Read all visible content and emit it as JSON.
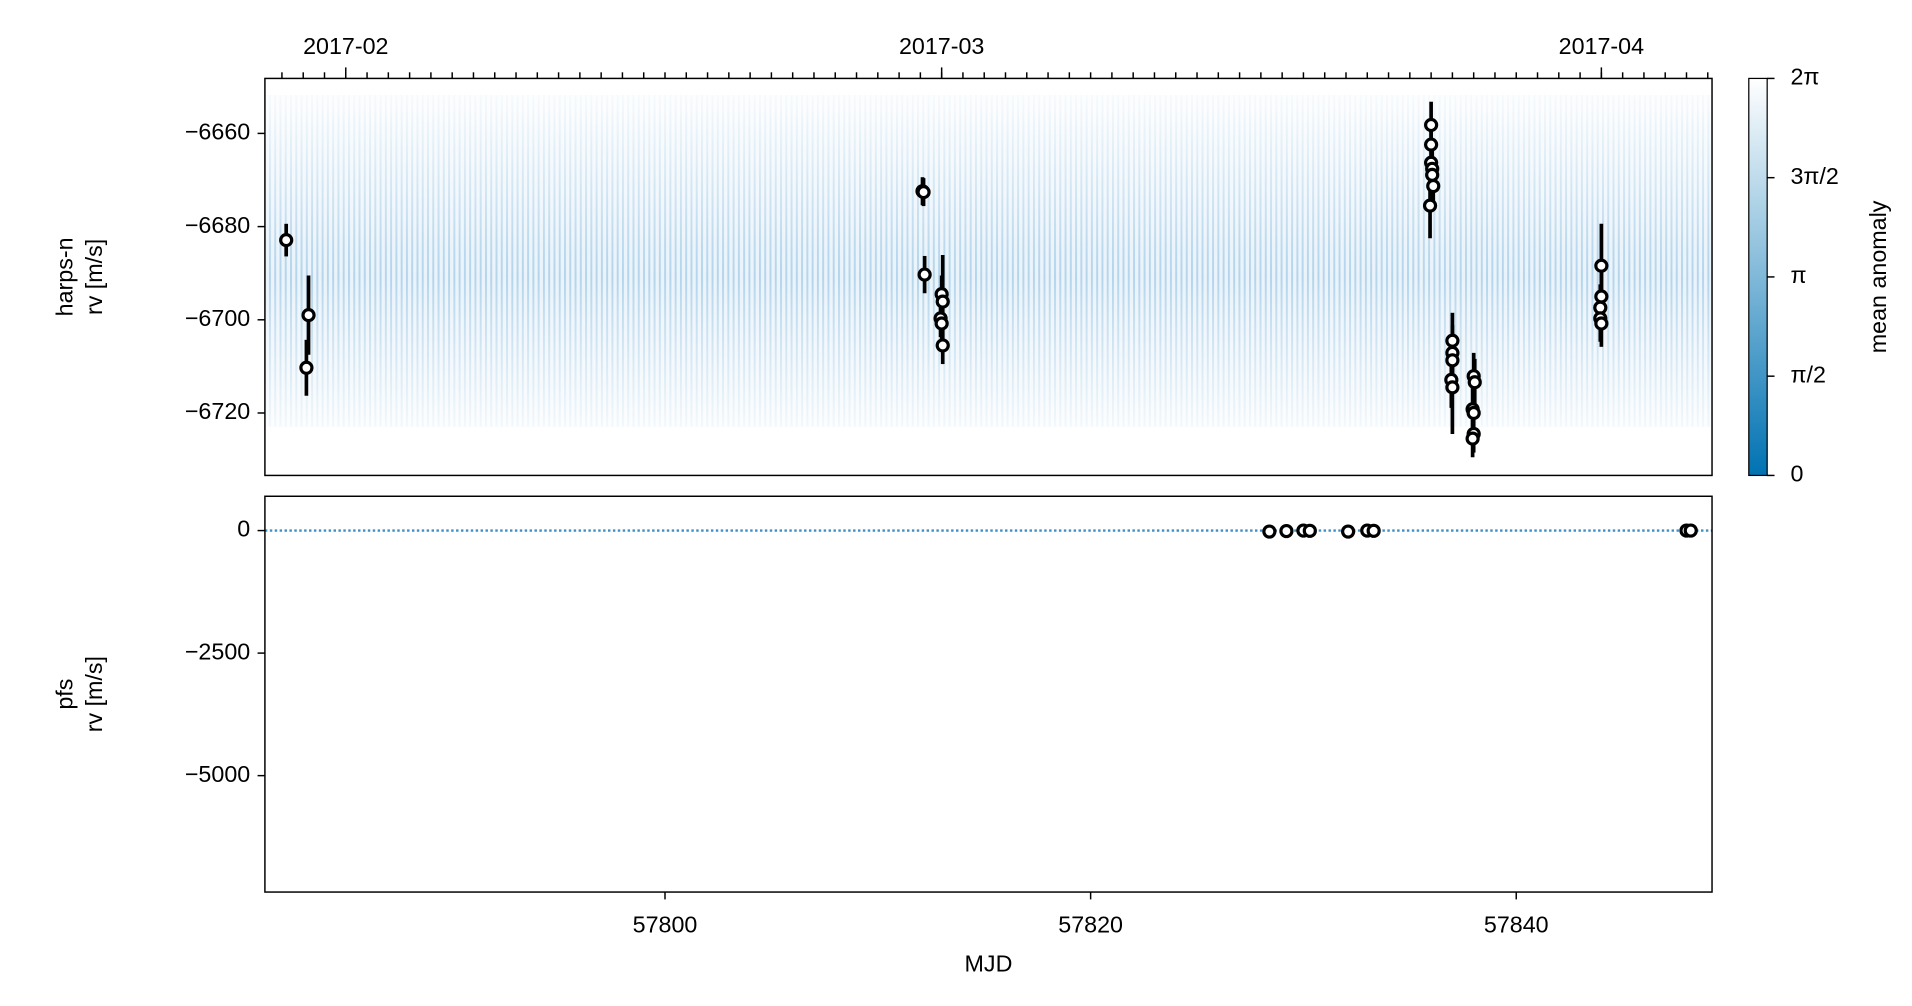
{
  "chart_data": [
    {
      "type": "scatter",
      "ylabel": [
        "harps-n",
        "rv [m/s]"
      ],
      "xlim": [
        57781.2,
        57849.2
      ],
      "ylim": [
        -6733.4,
        -6648.2
      ],
      "yticks": [
        {
          "value": -6660,
          "label": "−6660"
        },
        {
          "value": -6680,
          "label": "−6680"
        },
        {
          "value": -6700,
          "label": "−6700"
        },
        {
          "value": -6720,
          "label": "−6720"
        }
      ],
      "x2ticks": [
        {
          "value": 57785,
          "label": "2017-02"
        },
        {
          "value": 57813,
          "label": "2017-03"
        },
        {
          "value": 57844,
          "label": "2017-04"
        }
      ],
      "x2ticks_minor": [
        57782,
        57783,
        57784,
        57785,
        57786,
        57787,
        57788,
        57789,
        57790,
        57791,
        57792,
        57793,
        57794,
        57795,
        57796,
        57797,
        57798,
        57799,
        57800,
        57801,
        57802,
        57803,
        57804,
        57805,
        57806,
        57807,
        57808,
        57809,
        57810,
        57811,
        57812,
        57813,
        57814,
        57815,
        57816,
        57817,
        57818,
        57819,
        57820,
        57821,
        57822,
        57823,
        57824,
        57825,
        57826,
        57827,
        57828,
        57829,
        57830,
        57831,
        57832,
        57833,
        57834,
        57835,
        57836,
        57837,
        57838,
        57839,
        57840,
        57841,
        57842,
        57843,
        57844,
        57845,
        57846,
        57847,
        57848,
        57849
      ],
      "series": [
        {
          "color": "#000000",
          "x": [
            57782.2,
            57783.25,
            57783.15,
            57812.1,
            57812.15,
            57812.2,
            57813.0,
            57813.05,
            57812.95,
            57813.0,
            57813.05,
            57836.0,
            57836.0,
            57836.0,
            57836.05,
            57836.05,
            57836.1,
            57835.95,
            57837.0,
            57837.0,
            57837.0,
            57836.95,
            57837.0,
            57838.0,
            57838.05,
            57837.95,
            57838.0,
            57838.0,
            57837.95,
            57844.0,
            57844.0,
            57843.95,
            57843.95,
            57844.0
          ],
          "values": [
            -6682.9,
            -6699,
            -6710.3,
            -6672.4,
            -6672.6,
            -6690.3,
            -6694.5,
            -6696.1,
            -6699.7,
            -6700.8,
            -6705.5,
            -6658.2,
            -6662.4,
            -6666.3,
            -6667.6,
            -6668.9,
            -6671.3,
            -6675.5,
            -6704.5,
            -6707.1,
            -6708.7,
            -6712.9,
            -6714.5,
            -6712.1,
            -6713.4,
            -6719.2,
            -6720,
            -6724.5,
            -6725.5,
            -6688.4,
            -6695,
            -6697.4,
            -6699.7,
            -6700.8
          ],
          "errors": [
            3.5,
            8.5,
            6,
            3,
            3,
            4,
            4,
            10,
            4,
            5,
            4,
            5,
            5,
            5,
            5,
            5,
            5,
            7,
            6,
            6,
            6,
            6,
            10,
            5,
            5,
            5,
            5,
            4,
            4,
            9,
            5,
            5,
            5,
            5
          ]
        }
      ],
      "colorbar": {
        "label": "mean anomaly",
        "lim": [
          0,
          6.2832
        ],
        "colors": [
          "#0072b2",
          "#ffffff"
        ],
        "ticks": [
          {
            "value": 0,
            "label": "0"
          },
          {
            "value": 1.5708,
            "label": "π/2"
          },
          {
            "value": 3.1416,
            "label": "π"
          },
          {
            "value": 4.7124,
            "label": "3π/2"
          },
          {
            "value": 6.2832,
            "label": "2π"
          }
        ]
      }
    },
    {
      "type": "scatter",
      "ylabel": [
        "pfs",
        "rv [m/s]"
      ],
      "xlabel": "MJD",
      "xlim": [
        57781.2,
        57849.2
      ],
      "ylim": [
        -7375,
        700
      ],
      "xticks": [
        57800,
        57820,
        57840
      ],
      "yticks": [
        0,
        {
          "value": -2500,
          "label": "−2500"
        },
        {
          "value": -5000,
          "label": "−5000"
        }
      ],
      "series": [
        {
          "color": "#000000",
          "x": [
            57828.4,
            57829.2,
            57830.0,
            57830.3,
            57832.1,
            57833.0,
            57833.3,
            57848.0,
            57848.2
          ],
          "values": [
            -20,
            -10,
            0,
            -5,
            -20,
            0,
            -5,
            0,
            0
          ],
          "errors": [
            30,
            30,
            30,
            30,
            30,
            30,
            30,
            30,
            30
          ]
        }
      ]
    }
  ]
}
